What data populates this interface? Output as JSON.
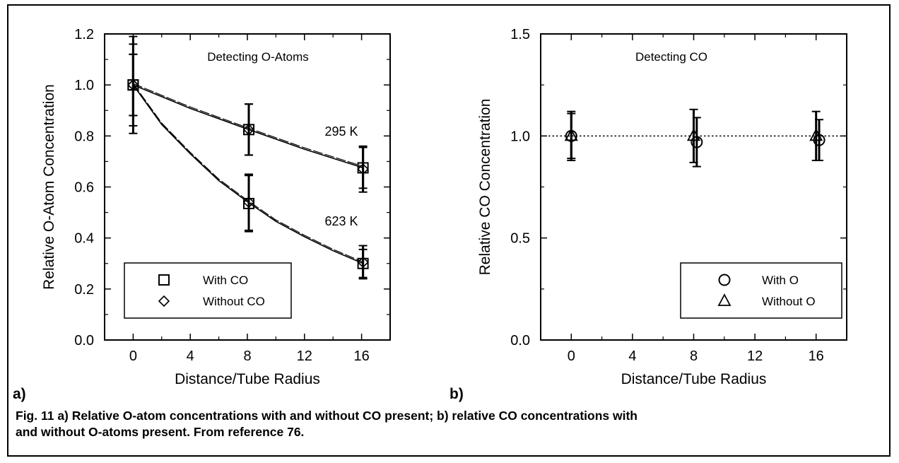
{
  "figure": {
    "caption_line1": "Fig. 11  a) Relative O-atom concentrations with and without CO present; b) relative CO concentrations with",
    "caption_line2": "and without O-atoms present.  From reference 76."
  },
  "chart_data": [
    {
      "panel_label": "a)",
      "type": "scatter",
      "title": "Detecting O-Atoms",
      "xlabel": "Distance/Tube Radius",
      "ylabel": "Relative O-Atom Concentration",
      "xlim": [
        -2,
        18
      ],
      "ylim": [
        0,
        1.2
      ],
      "xticks": [
        0,
        4,
        8,
        12,
        16
      ],
      "yticks": [
        0.0,
        0.2,
        0.4,
        0.6,
        0.8,
        1.0,
        1.2
      ],
      "ytick_labels": [
        "0.0",
        "0.2",
        "0.4",
        "0.6",
        "0.8",
        "1.0",
        "1.2"
      ],
      "grid": false,
      "legend_position": "bottom-left",
      "series": [
        {
          "name": "With CO",
          "marker": "square",
          "x": [
            0,
            8.1,
            16.1
          ],
          "y": [
            1.0,
            0.825,
            0.675
          ],
          "err": [
            0.16,
            0.1,
            0.08
          ]
        },
        {
          "name": "Without CO",
          "marker": "diamond",
          "x": [
            0,
            8.1,
            16.1
          ],
          "y": [
            1.0,
            0.825,
            0.67
          ],
          "err": [
            0.19,
            0.1,
            0.09
          ]
        },
        {
          "name": "With CO",
          "marker": "square",
          "x": [
            0,
            8.1,
            16.1
          ],
          "y": [
            1.0,
            0.535,
            0.3
          ],
          "err": [
            0.12,
            0.11,
            0.055
          ]
        },
        {
          "name": "Without CO",
          "marker": "diamond",
          "x": [
            0,
            8.1,
            16.1
          ],
          "y": [
            1.0,
            0.54,
            0.305
          ],
          "err": [
            0.12,
            0.11,
            0.065
          ]
        }
      ],
      "fits": [
        {
          "label": "295 K",
          "x": [
            0,
            4,
            8.1,
            12,
            16.1
          ],
          "y": [
            1.0,
            0.908,
            0.825,
            0.748,
            0.675
          ]
        },
        {
          "label": "623 K",
          "x": [
            0,
            2,
            4,
            6,
            8.1,
            10,
            12,
            14,
            16.1
          ],
          "y": [
            1.0,
            0.845,
            0.73,
            0.625,
            0.538,
            0.465,
            0.405,
            0.35,
            0.3
          ]
        }
      ]
    },
    {
      "panel_label": "b)",
      "type": "scatter",
      "title": "Detecting CO",
      "xlabel": "Distance/Tube Radius",
      "ylabel": "Relative CO Concentration",
      "xlim": [
        -2,
        18
      ],
      "ylim": [
        0,
        1.5
      ],
      "xticks": [
        0,
        4,
        8,
        12,
        16
      ],
      "yticks": [
        0.0,
        0.5,
        1.0,
        1.5
      ],
      "ytick_labels": [
        "0.0",
        "0.5",
        "1.0",
        "1.5"
      ],
      "grid": false,
      "legend_position": "bottom-right",
      "reference_line": 1.0,
      "series": [
        {
          "name": "With O",
          "marker": "circle",
          "x": [
            0,
            8.2,
            16.2
          ],
          "y": [
            1.0,
            0.97,
            0.98
          ],
          "err": [
            0.12,
            0.12,
            0.1
          ]
        },
        {
          "name": "Without O",
          "marker": "triangle",
          "x": [
            0,
            8.0,
            16.0
          ],
          "y": [
            1.0,
            1.0,
            1.0
          ],
          "err": [
            0.11,
            0.13,
            0.12
          ]
        }
      ]
    }
  ]
}
